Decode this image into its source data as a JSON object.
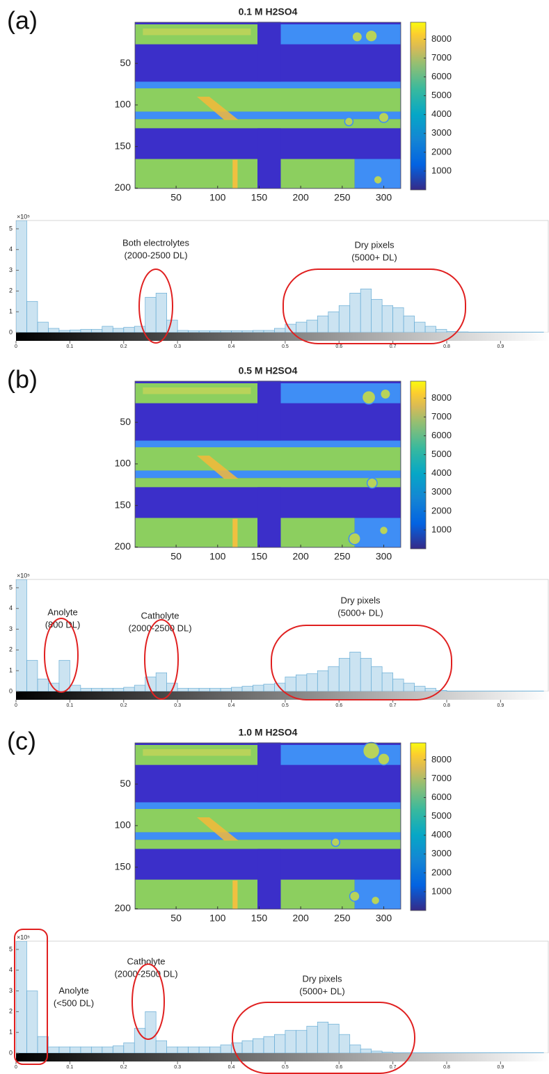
{
  "chart_data": [
    {
      "type": "heatmap",
      "panel": "(a)",
      "title": "0.1 M H2SO4",
      "xlim": [
        0.5,
        320.5
      ],
      "ylim": [
        0.5,
        200.5
      ],
      "xticks": [
        50,
        100,
        150,
        200,
        250,
        300
      ],
      "yticks": [
        50,
        100,
        150,
        200
      ],
      "clim": [
        0,
        8900
      ],
      "cticks": [
        1000,
        2000,
        3000,
        4000,
        5000,
        6000,
        7000,
        8000
      ]
    },
    {
      "type": "histogram",
      "y_multiplier": "×10⁵",
      "color": "#6aaed6",
      "bins": [
        0,
        0.02,
        0.04,
        0.06,
        0.08,
        0.1,
        0.12,
        0.14,
        0.16,
        0.18,
        0.2,
        0.22,
        0.24,
        0.26,
        0.28,
        0.3,
        0.32,
        0.34,
        0.36,
        0.38,
        0.4,
        0.42,
        0.44,
        0.46,
        0.48,
        0.5,
        0.52,
        0.54,
        0.56,
        0.58,
        0.6,
        0.62,
        0.64,
        0.66,
        0.68,
        0.7,
        0.72,
        0.74,
        0.76,
        0.78,
        0.8,
        0.82,
        0.84,
        0.86,
        0.88,
        0.9,
        0.92,
        0.94,
        0.96,
        0.98,
        1
      ],
      "values": [
        5.4,
        1.5,
        0.5,
        0.2,
        0.1,
        0.12,
        0.15,
        0.15,
        0.3,
        0.2,
        0.25,
        0.3,
        1.7,
        1.9,
        0.6,
        0.1,
        0.08,
        0.08,
        0.08,
        0.08,
        0.08,
        0.08,
        0.1,
        0.1,
        0.2,
        0.4,
        0.5,
        0.6,
        0.8,
        1,
        1.3,
        1.9,
        2.1,
        1.6,
        1.3,
        1.2,
        0.8,
        0.5,
        0.3,
        0.15,
        0.05,
        0.03,
        0.02,
        0.02,
        0.02,
        0.02,
        0.02,
        0.02,
        0.02,
        0
      ],
      "xlim": [
        0,
        0.99
      ],
      "ylim": [
        0,
        5.4
      ],
      "xticks": [
        0,
        0.1,
        0.2,
        0.3,
        0.4,
        0.5,
        0.6,
        0.7,
        0.8,
        0.9
      ],
      "yticks": [
        0,
        1,
        2,
        3,
        4,
        5
      ],
      "annotations": [
        {
          "lines": [
            "Both electrolytes",
            "(2000-2500 DL)"
          ]
        },
        {
          "lines": [
            "Dry pixels",
            "(5000+ DL)"
          ]
        }
      ]
    },
    {
      "type": "heatmap",
      "panel": "(b)",
      "title": "0.5 M H2SO4",
      "xlim": [
        0.5,
        320.5
      ],
      "ylim": [
        0.5,
        200.5
      ],
      "xticks": [
        50,
        100,
        150,
        200,
        250,
        300
      ],
      "yticks": [
        50,
        100,
        150,
        200
      ],
      "clim": [
        0,
        8900
      ],
      "cticks": [
        1000,
        2000,
        3000,
        4000,
        5000,
        6000,
        7000,
        8000
      ]
    },
    {
      "type": "histogram",
      "y_multiplier": "×10⁵",
      "color": "#6aaed6",
      "bins": [
        0,
        0.02,
        0.04,
        0.06,
        0.08,
        0.1,
        0.12,
        0.14,
        0.16,
        0.18,
        0.2,
        0.22,
        0.24,
        0.26,
        0.28,
        0.3,
        0.32,
        0.34,
        0.36,
        0.38,
        0.4,
        0.42,
        0.44,
        0.46,
        0.48,
        0.5,
        0.52,
        0.54,
        0.56,
        0.58,
        0.6,
        0.62,
        0.64,
        0.66,
        0.68,
        0.7,
        0.72,
        0.74,
        0.76,
        0.78,
        0.8,
        0.82,
        0.84,
        0.86,
        0.88,
        0.9,
        0.92,
        0.94,
        0.96,
        0.98,
        1
      ],
      "values": [
        5.4,
        1.5,
        0.6,
        0.4,
        1.5,
        0.3,
        0.15,
        0.15,
        0.15,
        0.15,
        0.2,
        0.3,
        0.7,
        0.9,
        0.4,
        0.15,
        0.15,
        0.15,
        0.15,
        0.15,
        0.2,
        0.25,
        0.3,
        0.35,
        0.4,
        0.7,
        0.8,
        0.85,
        1,
        1.2,
        1.6,
        1.9,
        1.6,
        1.2,
        0.9,
        0.6,
        0.4,
        0.25,
        0.15,
        0.05,
        0.02,
        0.02,
        0.02,
        0.02,
        0.02,
        0.02,
        0.02,
        0.02,
        0.02,
        0
      ],
      "xlim": [
        0,
        0.99
      ],
      "ylim": [
        0,
        5.4
      ],
      "xticks": [
        0,
        0.1,
        0.2,
        0.3,
        0.4,
        0.5,
        0.6,
        0.7,
        0.8,
        0.9
      ],
      "yticks": [
        0,
        1,
        2,
        3,
        4,
        5
      ],
      "annotations": [
        {
          "lines": [
            "Anolyte",
            "(800 DL)"
          ]
        },
        {
          "lines": [
            "Catholyte",
            "(2000-2500 DL)"
          ]
        },
        {
          "lines": [
            "Dry pixels",
            "(5000+ DL)"
          ]
        }
      ]
    },
    {
      "type": "heatmap",
      "panel": "(c)",
      "title": "1.0 M H2SO4",
      "xlim": [
        0.5,
        320.5
      ],
      "ylim": [
        0.5,
        200.5
      ],
      "xticks": [
        50,
        100,
        150,
        200,
        250,
        300
      ],
      "yticks": [
        50,
        100,
        150,
        200
      ],
      "clim": [
        0,
        8900
      ],
      "cticks": [
        1000,
        2000,
        3000,
        4000,
        5000,
        6000,
        7000,
        8000
      ]
    },
    {
      "type": "histogram",
      "y_multiplier": "×10⁵",
      "color": "#6aaed6",
      "bins": [
        0,
        0.02,
        0.04,
        0.06,
        0.08,
        0.1,
        0.12,
        0.14,
        0.16,
        0.18,
        0.2,
        0.22,
        0.24,
        0.26,
        0.28,
        0.3,
        0.32,
        0.34,
        0.36,
        0.38,
        0.4,
        0.42,
        0.44,
        0.46,
        0.48,
        0.5,
        0.52,
        0.54,
        0.56,
        0.58,
        0.6,
        0.62,
        0.64,
        0.66,
        0.68,
        0.7,
        0.72,
        0.74,
        0.76,
        0.78,
        0.8,
        0.82,
        0.84,
        0.86,
        0.88,
        0.9,
        0.92,
        0.94,
        0.96,
        0.98,
        1
      ],
      "values": [
        5.4,
        3,
        0.8,
        0.3,
        0.3,
        0.3,
        0.3,
        0.3,
        0.3,
        0.35,
        0.5,
        1.2,
        2,
        0.6,
        0.3,
        0.3,
        0.3,
        0.3,
        0.3,
        0.4,
        0.5,
        0.6,
        0.7,
        0.8,
        0.9,
        1.1,
        1.1,
        1.3,
        1.5,
        1.4,
        0.9,
        0.4,
        0.2,
        0.1,
        0.05,
        0.02,
        0.02,
        0.02,
        0.02,
        0.02,
        0.02,
        0.02,
        0.02,
        0.02,
        0.02,
        0.02,
        0.02,
        0.02,
        0.02,
        0
      ],
      "xlim": [
        0,
        0.99
      ],
      "ylim": [
        0,
        5.4
      ],
      "xticks": [
        0,
        0.1,
        0.2,
        0.3,
        0.4,
        0.5,
        0.6,
        0.7,
        0.8,
        0.9
      ],
      "yticks": [
        0,
        1,
        2,
        3,
        4,
        5
      ],
      "annotations": [
        {
          "lines": [
            "Catholyte",
            "(2000-2500 DL)"
          ]
        },
        {
          "lines": [
            "Anolyte",
            "(<500 DL)"
          ]
        },
        {
          "lines": [
            "Dry pixels",
            "(5000+ DL)"
          ]
        }
      ]
    }
  ]
}
